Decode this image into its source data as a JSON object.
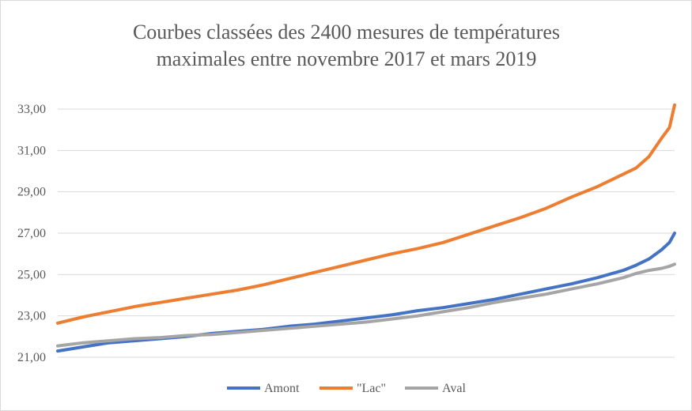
{
  "chart_data": {
    "type": "line",
    "title_lines": [
      "Courbes classées des 2400 mesures de températures",
      "maximales entre novembre 2017 et mars 2019"
    ],
    "xlabel": "",
    "ylabel": "",
    "ylim": [
      21,
      33
    ],
    "y_ticks": [
      "21,00",
      "23,00",
      "25,00",
      "27,00",
      "29,00",
      "31,00",
      "33,00"
    ],
    "y_tick_values": [
      21,
      23,
      25,
      27,
      29,
      31,
      33
    ],
    "x_count": 2400,
    "grid": true,
    "legend_position": "bottom",
    "x": [
      1,
      100,
      200,
      300,
      400,
      500,
      600,
      700,
      800,
      900,
      1000,
      1100,
      1200,
      1300,
      1400,
      1500,
      1600,
      1700,
      1800,
      1900,
      2000,
      2100,
      2200,
      2250,
      2300,
      2350,
      2380,
      2400
    ],
    "series": [
      {
        "name": "Amont",
        "color": "#4472c4",
        "values": [
          21.3,
          21.5,
          21.7,
          21.8,
          21.9,
          22.0,
          22.15,
          22.25,
          22.35,
          22.5,
          22.6,
          22.75,
          22.9,
          23.05,
          23.25,
          23.4,
          23.6,
          23.8,
          24.05,
          24.3,
          24.55,
          24.85,
          25.2,
          25.45,
          25.75,
          26.2,
          26.55,
          27.0
        ]
      },
      {
        "name": "\"Lac\"",
        "color": "#ed7d31",
        "values": [
          22.65,
          22.95,
          23.2,
          23.45,
          23.65,
          23.85,
          24.05,
          24.25,
          24.5,
          24.8,
          25.1,
          25.4,
          25.7,
          26.0,
          26.25,
          26.55,
          26.95,
          27.35,
          27.75,
          28.2,
          28.75,
          29.25,
          29.85,
          30.15,
          30.7,
          31.6,
          32.1,
          33.2
        ]
      },
      {
        "name": "Aval",
        "color": "#a5a5a5",
        "values": [
          21.55,
          21.7,
          21.8,
          21.9,
          21.95,
          22.05,
          22.1,
          22.2,
          22.3,
          22.4,
          22.5,
          22.6,
          22.7,
          22.85,
          23.0,
          23.2,
          23.4,
          23.65,
          23.85,
          24.05,
          24.3,
          24.55,
          24.85,
          25.05,
          25.2,
          25.3,
          25.4,
          25.5
        ]
      }
    ]
  }
}
